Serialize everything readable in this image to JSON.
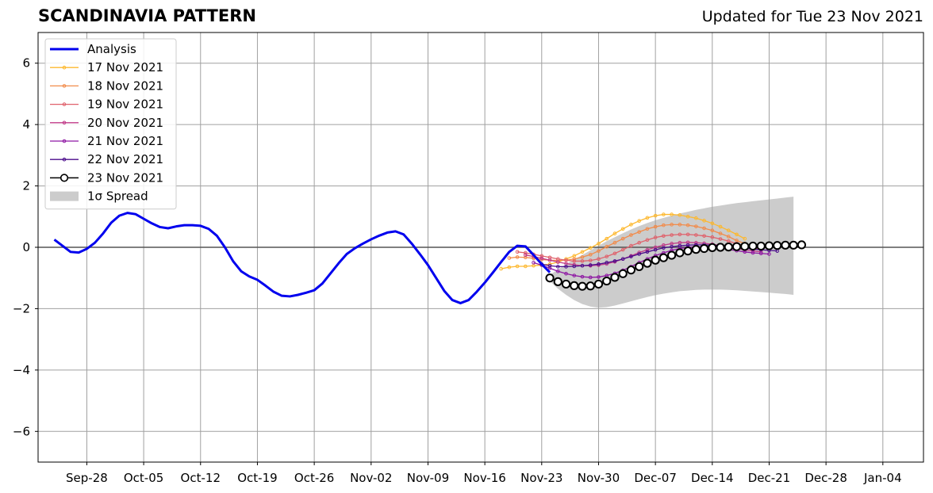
{
  "title": "SCANDINAVIA PATTERN",
  "subtitle": "Updated for Tue 23 Nov 2021",
  "colors": {
    "analysis": "#0000ee",
    "spread": "#cccccc",
    "series": [
      "#fdb82e",
      "#f28b4a",
      "#e0616b",
      "#c03a87",
      "#8e17a3",
      "#4b0c8c",
      "#000000"
    ]
  },
  "chart_data": {
    "type": "line",
    "title": "SCANDINAVIA PATTERN",
    "xlabel": "",
    "ylabel": "",
    "x_unit": "date",
    "xlim": [
      "2021-09-22",
      "2022-01-09"
    ],
    "ylim": [
      -7,
      7
    ],
    "grid": true,
    "legend": "top-left",
    "xticks": [
      {
        "date": "2021-09-28",
        "label": "Sep-28"
      },
      {
        "date": "2021-10-05",
        "label": "Oct-05"
      },
      {
        "date": "2021-10-12",
        "label": "Oct-12"
      },
      {
        "date": "2021-10-19",
        "label": "Oct-19"
      },
      {
        "date": "2021-10-26",
        "label": "Oct-26"
      },
      {
        "date": "2021-11-02",
        "label": "Nov-02"
      },
      {
        "date": "2021-11-09",
        "label": "Nov-09"
      },
      {
        "date": "2021-11-16",
        "label": "Nov-16"
      },
      {
        "date": "2021-11-23",
        "label": "Nov-23"
      },
      {
        "date": "2021-11-30",
        "label": "Nov-30"
      },
      {
        "date": "2021-12-07",
        "label": "Dec-07"
      },
      {
        "date": "2021-12-14",
        "label": "Dec-14"
      },
      {
        "date": "2021-12-21",
        "label": "Dec-21"
      },
      {
        "date": "2021-12-28",
        "label": "Dec-28"
      },
      {
        "date": "2022-01-04",
        "label": "Jan-04"
      }
    ],
    "yticks": [
      {
        "value": 6,
        "label": "6"
      },
      {
        "value": 4,
        "label": "4"
      },
      {
        "value": 2,
        "label": "2"
      },
      {
        "value": 0,
        "label": "0"
      },
      {
        "value": -2,
        "label": "−2"
      },
      {
        "value": -4,
        "label": "−4"
      },
      {
        "value": -6,
        "label": "−6"
      }
    ],
    "analysis": {
      "name": "Analysis",
      "start_date": "2021-09-24",
      "values": [
        0.25,
        0.05,
        -0.15,
        -0.17,
        -0.05,
        0.15,
        0.45,
        0.8,
        1.03,
        1.12,
        1.08,
        0.93,
        0.78,
        0.66,
        0.62,
        0.68,
        0.72,
        0.72,
        0.7,
        0.6,
        0.38,
        0.0,
        -0.45,
        -0.78,
        -0.95,
        -1.06,
        -1.25,
        -1.45,
        -1.58,
        -1.6,
        -1.55,
        -1.48,
        -1.4,
        -1.18,
        -0.85,
        -0.52,
        -0.22,
        -0.03,
        0.12,
        0.26,
        0.38,
        0.48,
        0.52,
        0.42,
        0.12,
        -0.22,
        -0.58,
        -1.0,
        -1.42,
        -1.72,
        -1.82,
        -1.72,
        -1.45,
        -1.15,
        -0.82,
        -0.48,
        -0.15,
        0.05,
        0.03,
        -0.25,
        -0.55,
        -0.82
      ]
    },
    "forecasts": [
      {
        "name": "17 Nov 2021",
        "start_date": "2021-11-18",
        "values": [
          -0.7,
          -0.65,
          -0.62,
          -0.62,
          -0.6,
          -0.58,
          -0.55,
          -0.48,
          -0.38,
          -0.28,
          -0.15,
          -0.02,
          0.12,
          0.28,
          0.45,
          0.6,
          0.74,
          0.86,
          0.96,
          1.03,
          1.07,
          1.07,
          1.05,
          1.0,
          0.95,
          0.87,
          0.78,
          0.67,
          0.55,
          0.42,
          0.28
        ]
      },
      {
        "name": "18 Nov 2021",
        "start_date": "2021-11-19",
        "values": [
          -0.35,
          -0.32,
          -0.33,
          -0.36,
          -0.4,
          -0.42,
          -0.43,
          -0.42,
          -0.38,
          -0.32,
          -0.24,
          -0.12,
          0.02,
          0.15,
          0.28,
          0.4,
          0.5,
          0.6,
          0.67,
          0.72,
          0.74,
          0.74,
          0.72,
          0.68,
          0.62,
          0.55,
          0.45,
          0.35,
          0.22,
          0.12,
          0.02
        ]
      },
      {
        "name": "19 Nov 2021",
        "start_date": "2021-11-20",
        "values": [
          -0.15,
          -0.18,
          -0.23,
          -0.28,
          -0.33,
          -0.38,
          -0.42,
          -0.45,
          -0.45,
          -0.43,
          -0.38,
          -0.3,
          -0.2,
          -0.08,
          0.05,
          0.15,
          0.24,
          0.32,
          0.37,
          0.4,
          0.42,
          0.42,
          0.4,
          0.37,
          0.33,
          0.27,
          0.2,
          0.12,
          0.05,
          -0.02,
          -0.08
        ]
      },
      {
        "name": "20 Nov 2021",
        "start_date": "2021-11-21",
        "values": [
          -0.25,
          -0.3,
          -0.36,
          -0.42,
          -0.48,
          -0.53,
          -0.57,
          -0.6,
          -0.6,
          -0.58,
          -0.54,
          -0.47,
          -0.38,
          -0.28,
          -0.17,
          -0.08,
          0.0,
          0.07,
          0.12,
          0.15,
          0.16,
          0.15,
          0.13,
          0.1,
          0.06,
          0.01,
          -0.04,
          -0.08,
          -0.12,
          -0.15
        ]
      },
      {
        "name": "21 Nov 2021",
        "start_date": "2021-11-22",
        "values": [
          -0.5,
          -0.58,
          -0.68,
          -0.78,
          -0.86,
          -0.92,
          -0.96,
          -0.98,
          -0.97,
          -0.92,
          -0.85,
          -0.75,
          -0.63,
          -0.5,
          -0.38,
          -0.27,
          -0.18,
          -0.1,
          -0.04,
          0.0,
          0.02,
          0.02,
          0.0,
          -0.03,
          -0.07,
          -0.11,
          -0.15,
          -0.18,
          -0.2,
          -0.22
        ]
      },
      {
        "name": "22 Nov 2021",
        "start_date": "2021-11-23",
        "values": [
          -0.55,
          -0.6,
          -0.63,
          -0.63,
          -0.62,
          -0.6,
          -0.58,
          -0.55,
          -0.5,
          -0.45,
          -0.38,
          -0.3,
          -0.22,
          -0.15,
          -0.08,
          -0.02,
          0.02,
          0.05,
          0.07,
          0.08,
          0.08,
          0.07,
          0.05,
          0.03,
          0.0,
          -0.03,
          -0.06,
          -0.08,
          -0.1,
          -0.12
        ]
      },
      {
        "name": "23 Nov 2021",
        "start_date": "2021-11-24",
        "values": [
          -1.0,
          -1.12,
          -1.2,
          -1.25,
          -1.27,
          -1.26,
          -1.2,
          -1.1,
          -0.98,
          -0.86,
          -0.74,
          -0.63,
          -0.52,
          -0.42,
          -0.34,
          -0.26,
          -0.18,
          -0.12,
          -0.07,
          -0.04,
          -0.01,
          0.0,
          0.01,
          0.02,
          0.03,
          0.04,
          0.04,
          0.05,
          0.06,
          0.07,
          0.07,
          0.08
        ]
      }
    ],
    "spread": {
      "name": "1σ Spread",
      "start_date": "2021-11-24",
      "upper": [
        -0.9,
        -0.72,
        -0.55,
        -0.4,
        -0.25,
        -0.1,
        0.05,
        0.2,
        0.33,
        0.46,
        0.58,
        0.69,
        0.79,
        0.88,
        0.96,
        1.03,
        1.1,
        1.16,
        1.22,
        1.27,
        1.32,
        1.36,
        1.4,
        1.44,
        1.47,
        1.5,
        1.53,
        1.56,
        1.59,
        1.62,
        1.65
      ],
      "lower": [
        -1.1,
        -1.35,
        -1.55,
        -1.72,
        -1.85,
        -1.93,
        -1.97,
        -1.95,
        -1.9,
        -1.83,
        -1.76,
        -1.69,
        -1.62,
        -1.56,
        -1.51,
        -1.47,
        -1.43,
        -1.41,
        -1.39,
        -1.38,
        -1.38,
        -1.38,
        -1.39,
        -1.4,
        -1.42,
        -1.44,
        -1.46,
        -1.48,
        -1.5,
        -1.52,
        -1.55
      ]
    }
  }
}
